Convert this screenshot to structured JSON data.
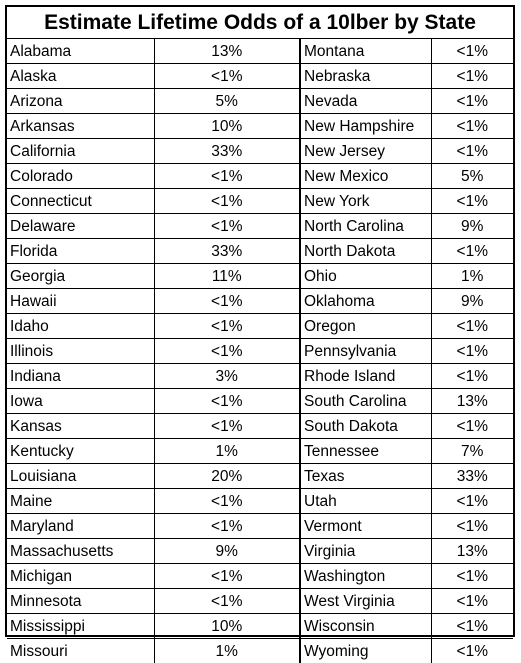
{
  "title": "Estimate Lifetime Odds of a 10lber by State",
  "left_column": [
    {
      "state": "Alabama",
      "odds": "13%"
    },
    {
      "state": "Alaska",
      "odds": "<1%"
    },
    {
      "state": "Arizona",
      "odds": "5%"
    },
    {
      "state": "Arkansas",
      "odds": "10%"
    },
    {
      "state": "California",
      "odds": "33%"
    },
    {
      "state": "Colorado",
      "odds": "<1%"
    },
    {
      "state": "Connecticut",
      "odds": "<1%"
    },
    {
      "state": "Delaware",
      "odds": "<1%"
    },
    {
      "state": "Florida",
      "odds": "33%"
    },
    {
      "state": "Georgia",
      "odds": "11%"
    },
    {
      "state": "Hawaii",
      "odds": "<1%"
    },
    {
      "state": "Idaho",
      "odds": "<1%"
    },
    {
      "state": "Illinois",
      "odds": "<1%"
    },
    {
      "state": "Indiana",
      "odds": "3%"
    },
    {
      "state": "Iowa",
      "odds": "<1%"
    },
    {
      "state": "Kansas",
      "odds": "<1%"
    },
    {
      "state": "Kentucky",
      "odds": "1%"
    },
    {
      "state": "Louisiana",
      "odds": "20%"
    },
    {
      "state": "Maine",
      "odds": "<1%"
    },
    {
      "state": "Maryland",
      "odds": "<1%"
    },
    {
      "state": "Massachusetts",
      "odds": "9%"
    },
    {
      "state": "Michigan",
      "odds": "<1%"
    },
    {
      "state": "Minnesota",
      "odds": "<1%"
    },
    {
      "state": "Mississippi",
      "odds": "10%"
    },
    {
      "state": "Missouri",
      "odds": "1%"
    }
  ],
  "right_column": [
    {
      "state": "Montana",
      "odds": "<1%"
    },
    {
      "state": "Nebraska",
      "odds": "<1%"
    },
    {
      "state": "Nevada",
      "odds": "<1%"
    },
    {
      "state": "New Hampshire",
      "odds": "<1%"
    },
    {
      "state": "New Jersey",
      "odds": "<1%"
    },
    {
      "state": "New Mexico",
      "odds": "5%"
    },
    {
      "state": "New York",
      "odds": "<1%"
    },
    {
      "state": "North Carolina",
      "odds": "9%"
    },
    {
      "state": "North Dakota",
      "odds": "<1%"
    },
    {
      "state": "Ohio",
      "odds": "1%"
    },
    {
      "state": "Oklahoma",
      "odds": "9%"
    },
    {
      "state": "Oregon",
      "odds": "<1%"
    },
    {
      "state": "Pennsylvania",
      "odds": "<1%"
    },
    {
      "state": "Rhode Island",
      "odds": "<1%"
    },
    {
      "state": "South Carolina",
      "odds": "13%"
    },
    {
      "state": "South Dakota",
      "odds": "<1%"
    },
    {
      "state": "Tennessee",
      "odds": "7%"
    },
    {
      "state": "Texas",
      "odds": "33%"
    },
    {
      "state": "Utah",
      "odds": "<1%"
    },
    {
      "state": "Vermont",
      "odds": "<1%"
    },
    {
      "state": "Virginia",
      "odds": "13%"
    },
    {
      "state": "Washington",
      "odds": "<1%"
    },
    {
      "state": "West Virginia",
      "odds": "<1%"
    },
    {
      "state": "Wisconsin",
      "odds": "<1%"
    },
    {
      "state": "Wyoming",
      "odds": "<1%"
    }
  ]
}
